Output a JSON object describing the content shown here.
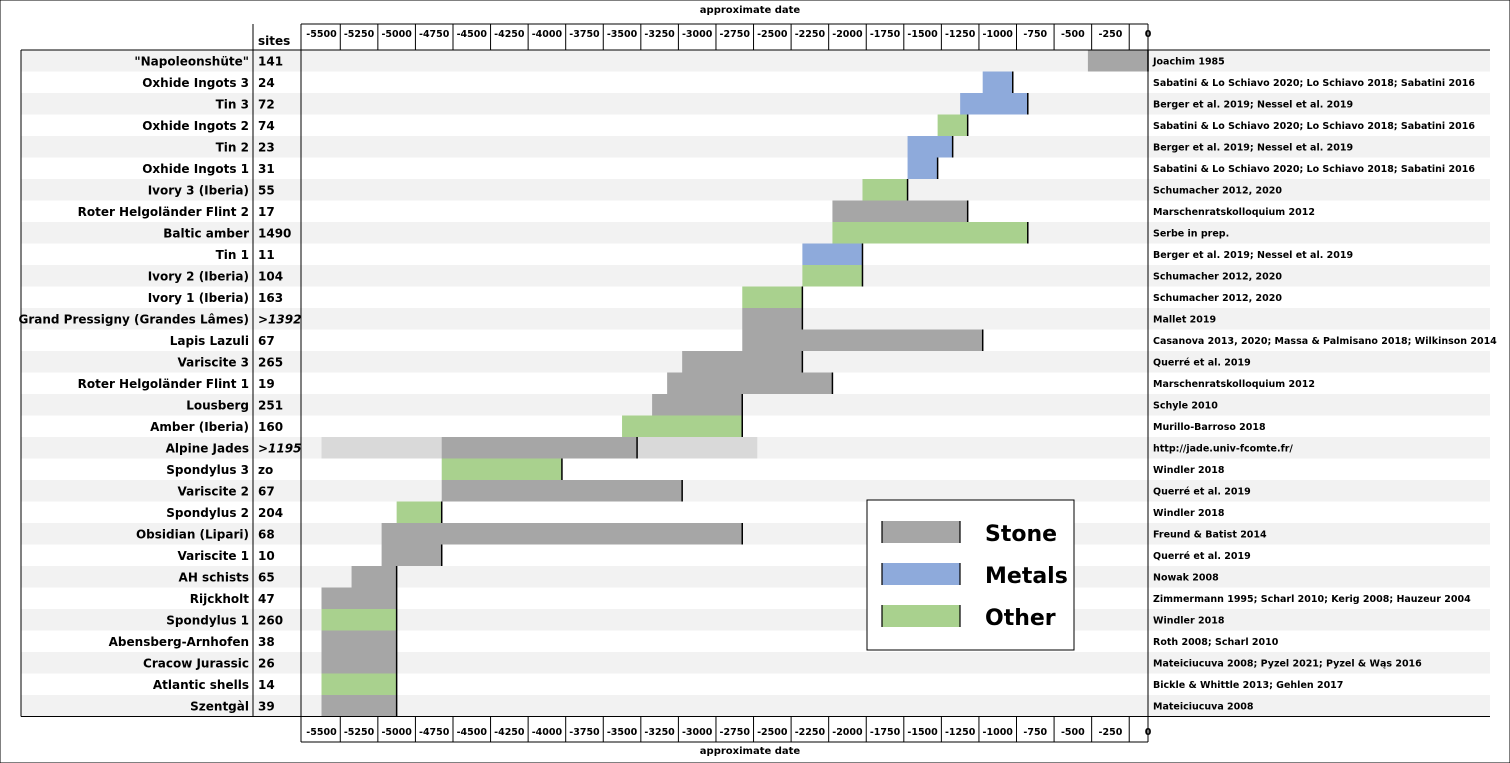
{
  "chart_data": {
    "type": "bar",
    "axis_title": "approximate date",
    "sites_header": "sites",
    "xlim": [
      -5550,
      50
    ],
    "x_ticks": [
      -5500,
      -5250,
      -5000,
      -4750,
      -4500,
      -4250,
      -4000,
      -3750,
      -3500,
      -3250,
      -3000,
      -2750,
      -2500,
      -2250,
      -2000,
      -1750,
      -1500,
      -1250,
      -1000,
      -750,
      -500,
      -250,
      0
    ],
    "x_tick_labels": [
      "-5500",
      "-5250",
      "-5000",
      "-4750",
      "-4500",
      "-4250",
      "-4000",
      "-3750",
      "-3500",
      "-3250",
      "-3000",
      "-2750",
      "-2500",
      "-2250",
      "-2000",
      "-1750",
      "-1500",
      "-1250",
      "-1000",
      "-750",
      "-500",
      "-250",
      "0"
    ],
    "legend": {
      "position": "lower-right",
      "entries": [
        {
          "name": "Stone",
          "color": "#a6a6a6"
        },
        {
          "name": "Metals",
          "color": "#8eaadb"
        },
        {
          "name": "Other",
          "color": "#a9d18e"
        }
      ]
    },
    "colors": {
      "stone": "#a6a6a6",
      "metals": "#8eaadb",
      "other": "#a9d18e",
      "stone_light": "#d9d9d9",
      "stripe": "#f2f2f2"
    },
    "rows": [
      {
        "label": "\"Napoleonshüte\"",
        "sites": "141",
        "ref": "Joachim 1985",
        "segments": [
          {
            "start": -400,
            "end": 0,
            "category": "stone"
          }
        ]
      },
      {
        "label": "Oxhide Ingots 3",
        "sites": "24",
        "ref": "Sabatini & Lo Schiavo 2020; Lo Schiavo 2018; Sabatini 2016",
        "segments": [
          {
            "start": -1100,
            "end": -900,
            "category": "metals"
          }
        ]
      },
      {
        "label": "Tin 3",
        "sites": "72",
        "ref": "Berger et al. 2019; Nessel et al. 2019",
        "segments": [
          {
            "start": -1250,
            "end": -800,
            "category": "metals"
          }
        ]
      },
      {
        "label": "Oxhide Ingots 2",
        "sites": "74",
        "ref": "Sabatini & Lo Schiavo 2020; Lo Schiavo 2018; Sabatini 2016",
        "segments": [
          {
            "start": -1400,
            "end": -1200,
            "category": "other"
          }
        ]
      },
      {
        "label": "Tin 2",
        "sites": "23",
        "ref": "Berger et al. 2019; Nessel et al. 2019",
        "segments": [
          {
            "start": -1600,
            "end": -1300,
            "category": "metals"
          }
        ]
      },
      {
        "label": "Oxhide Ingots 1",
        "sites": "31",
        "ref": "Sabatini & Lo Schiavo 2020; Lo Schiavo 2018; Sabatini 2016",
        "segments": [
          {
            "start": -1600,
            "end": -1400,
            "category": "metals"
          }
        ]
      },
      {
        "label": "Ivory 3  (Iberia)",
        "sites": "55",
        "ref": "Schumacher 2012, 2020",
        "segments": [
          {
            "start": -1900,
            "end": -1600,
            "category": "other"
          }
        ]
      },
      {
        "label": "Roter Helgoländer Flint 2",
        "sites": "17",
        "ref": "Marschenratskolloquium 2012",
        "segments": [
          {
            "start": -2100,
            "end": -1200,
            "category": "stone"
          }
        ]
      },
      {
        "label": "Baltic amber",
        "sites": "1490",
        "ref": "Serbe in prep.",
        "segments": [
          {
            "start": -2100,
            "end": -800,
            "category": "other"
          }
        ]
      },
      {
        "label": "Tin 1",
        "sites": "11",
        "ref": "Berger et al. 2019; Nessel et al. 2019",
        "segments": [
          {
            "start": -2300,
            "end": -1900,
            "category": "metals"
          }
        ]
      },
      {
        "label": "Ivory 2  (Iberia)",
        "sites": "104",
        "ref": "Schumacher 2012, 2020",
        "segments": [
          {
            "start": -2300,
            "end": -1900,
            "category": "other"
          }
        ]
      },
      {
        "label": "Ivory 1 (Iberia)",
        "sites": "163",
        "ref": "Schumacher 2012, 2020",
        "segments": [
          {
            "start": -2700,
            "end": -2300,
            "category": "other"
          }
        ]
      },
      {
        "label": "Grand Pressigny (Grandes Lâmes)",
        "sites": ">1392",
        "ref": "Mallet 2019",
        "segments": [
          {
            "start": -2700,
            "end": -2300,
            "category": "stone"
          }
        ]
      },
      {
        "label": "Lapis Lazuli",
        "sites": "67",
        "ref": "Casanova 2013, 2020; Massa & Palmisano 2018; Wilkinson 2014",
        "segments": [
          {
            "start": -2700,
            "end": -1100,
            "category": "stone"
          }
        ]
      },
      {
        "label": "Variscite 3",
        "sites": "265",
        "ref": "Querré et al. 2019",
        "segments": [
          {
            "start": -3100,
            "end": -2300,
            "category": "stone"
          }
        ]
      },
      {
        "label": "Roter Helgoländer Flint 1",
        "sites": "19",
        "ref": "Marschenratskolloquium 2012",
        "segments": [
          {
            "start": -3200,
            "end": -2100,
            "category": "stone"
          }
        ]
      },
      {
        "label": "Lousberg",
        "sites": "251",
        "ref": "Schyle 2010",
        "segments": [
          {
            "start": -3300,
            "end": -2700,
            "category": "stone"
          }
        ]
      },
      {
        "label": "Amber (Iberia)",
        "sites": "160",
        "ref": "Murillo-Barroso 2018",
        "segments": [
          {
            "start": -3500,
            "end": -2700,
            "category": "other"
          }
        ]
      },
      {
        "label": "Alpine Jades",
        "sites": ">1195",
        "ref": "http://jade.univ-fcomte.fr/",
        "segments": [
          {
            "start": -5500,
            "end": -2600,
            "category": "stone_light"
          },
          {
            "start": -4700,
            "end": -3400,
            "category": "stone"
          }
        ]
      },
      {
        "label": "Spondylus 3",
        "sites": "zo",
        "ref": "Windler 2018",
        "segments": [
          {
            "start": -4700,
            "end": -3900,
            "category": "other"
          }
        ]
      },
      {
        "label": "Variscite 2",
        "sites": "67",
        "ref": "Querré et al. 2019",
        "segments": [
          {
            "start": -4700,
            "end": -3100,
            "category": "stone"
          }
        ]
      },
      {
        "label": "Spondylus 2",
        "sites": "204",
        "ref": "Windler 2018",
        "segments": [
          {
            "start": -5000,
            "end": -4700,
            "category": "other"
          }
        ]
      },
      {
        "label": "Obsidian (Lipari)",
        "sites": "68",
        "ref": "Freund & Batist 2014",
        "segments": [
          {
            "start": -5100,
            "end": -2700,
            "category": "stone"
          }
        ]
      },
      {
        "label": "Variscite 1",
        "sites": "10",
        "ref": "Querré et al. 2019",
        "segments": [
          {
            "start": -5100,
            "end": -4700,
            "category": "stone"
          }
        ]
      },
      {
        "label": "AH schists",
        "sites": "65",
        "ref": "Nowak 2008",
        "segments": [
          {
            "start": -5300,
            "end": -5000,
            "category": "stone"
          }
        ]
      },
      {
        "label": "Rijckholt",
        "sites": "47",
        "ref": "Zimmermann 1995; Scharl 2010; Kerig 2008; Hauzeur 2004",
        "segments": [
          {
            "start": -5500,
            "end": -5000,
            "category": "stone"
          }
        ]
      },
      {
        "label": "Spondylus 1",
        "sites": "260",
        "ref": "Windler 2018",
        "segments": [
          {
            "start": -5500,
            "end": -5000,
            "category": "other"
          }
        ]
      },
      {
        "label": "Abensberg-Arnhofen",
        "sites": "38",
        "ref": "Roth 2008; Scharl 2010",
        "segments": [
          {
            "start": -5500,
            "end": -5000,
            "category": "stone"
          }
        ]
      },
      {
        "label": "Cracow Jurassic",
        "sites": "26",
        "ref": "Mateiciucuva 2008; Pyzel 2021; Pyzel & Wąs 2016",
        "segments": [
          {
            "start": -5500,
            "end": -5000,
            "category": "stone"
          }
        ]
      },
      {
        "label": "Atlantic shells",
        "sites": "14",
        "ref": "Bickle & Whittle 2013; Gehlen 2017",
        "segments": [
          {
            "start": -5500,
            "end": -5000,
            "category": "other"
          }
        ]
      },
      {
        "label": "Szentgàl",
        "sites": "39",
        "ref": "Mateiciucuva 2008",
        "segments": [
          {
            "start": -5500,
            "end": -5000,
            "category": "stone"
          }
        ]
      }
    ]
  }
}
